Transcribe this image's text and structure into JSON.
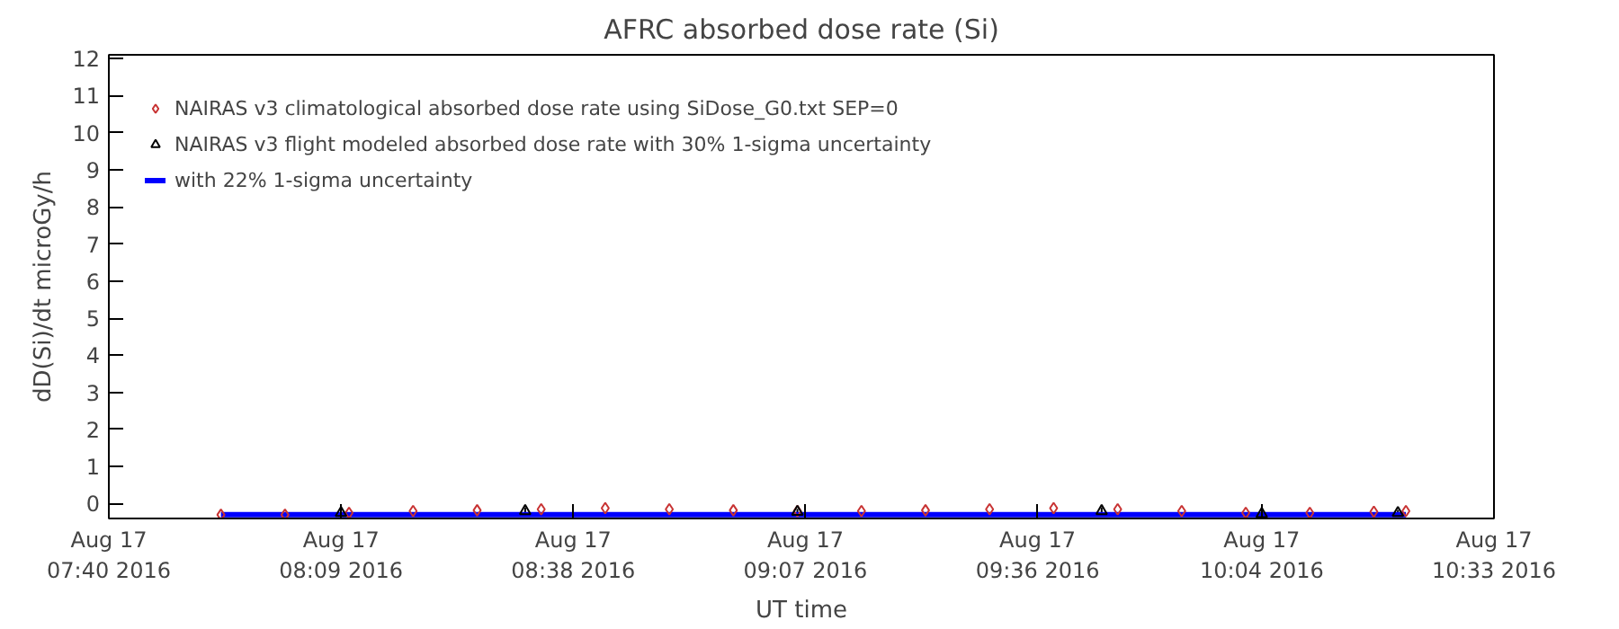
{
  "chart_data": {
    "type": "scatter",
    "title": "AFRC absorbed dose rate (Si)",
    "xlabel": "UT time",
    "ylabel": "dD(Si)/dt microGy/h",
    "xlim": [
      "2016-08-17T07:40",
      "2016-08-17T10:33"
    ],
    "xticks": [
      {
        "value": "2016-08-17T07:40",
        "label": "Aug 17\n07:40 2016"
      },
      {
        "value": "2016-08-17T08:09",
        "label": "Aug 17\n08:09 2016"
      },
      {
        "value": "2016-08-17T08:38",
        "label": "Aug 17\n08:38 2016"
      },
      {
        "value": "2016-08-17T09:07",
        "label": "Aug 17\n09:07 2016"
      },
      {
        "value": "2016-08-17T09:36",
        "label": "Aug 17\n09:36 2016"
      },
      {
        "value": "2016-08-17T10:04",
        "label": "Aug 17\n10:04 2016"
      },
      {
        "value": "2016-08-17T10:33",
        "label": "Aug 17\n10:33 2016"
      }
    ],
    "ylim": [
      -0.4,
      12.1
    ],
    "yticks": [
      0,
      1,
      2,
      3,
      4,
      5,
      6,
      7,
      8,
      9,
      10,
      11,
      12
    ],
    "grid": false,
    "legend": "top left",
    "series": [
      {
        "name": "NAIRAS v3 climatological absorbed dose rate using SiDose_G0.txt SEP=0",
        "marker": "diamond",
        "color": "#c83232",
        "x": [
          "2016-08-17T07:54",
          "2016-08-17T08:02",
          "2016-08-17T08:10",
          "2016-08-17T08:18",
          "2016-08-17T08:26",
          "2016-08-17T08:34",
          "2016-08-17T08:42",
          "2016-08-17T08:50",
          "2016-08-17T08:58",
          "2016-08-17T09:06",
          "2016-08-17T09:14",
          "2016-08-17T09:22",
          "2016-08-17T09:30",
          "2016-08-17T09:38",
          "2016-08-17T09:46",
          "2016-08-17T09:54",
          "2016-08-17T10:02",
          "2016-08-17T10:10",
          "2016-08-17T10:18",
          "2016-08-17T10:22"
        ],
        "values": [
          -0.3,
          -0.3,
          -0.25,
          -0.2,
          -0.18,
          -0.15,
          -0.12,
          -0.15,
          -0.18,
          -0.2,
          -0.2,
          -0.18,
          -0.15,
          -0.12,
          -0.15,
          -0.2,
          -0.25,
          -0.25,
          -0.22,
          -0.2
        ]
      },
      {
        "name": "NAIRAS v3 flight modeled absorbed dose rate with 30% 1-sigma uncertainty",
        "marker": "triangle",
        "color": "#000000",
        "x": [
          "2016-08-17T08:09",
          "2016-08-17T08:32",
          "2016-08-17T09:06",
          "2016-08-17T09:44",
          "2016-08-17T10:04",
          "2016-08-17T10:21"
        ],
        "values": [
          -0.25,
          -0.2,
          -0.22,
          -0.2,
          -0.28,
          -0.25
        ],
        "errors": [
          0.08,
          0.1,
          0.08,
          0.1,
          0.05,
          0.08
        ]
      },
      {
        "name": "with 22% 1-sigma uncertainty",
        "type": "line",
        "color": "#0000ff",
        "x": [
          "2016-08-17T07:54",
          "2016-08-17T08:30",
          "2016-08-17T09:10",
          "2016-08-17T09:50",
          "2016-08-17T10:22"
        ],
        "values": [
          -0.3,
          -0.3,
          -0.3,
          -0.3,
          -0.3
        ]
      }
    ]
  }
}
